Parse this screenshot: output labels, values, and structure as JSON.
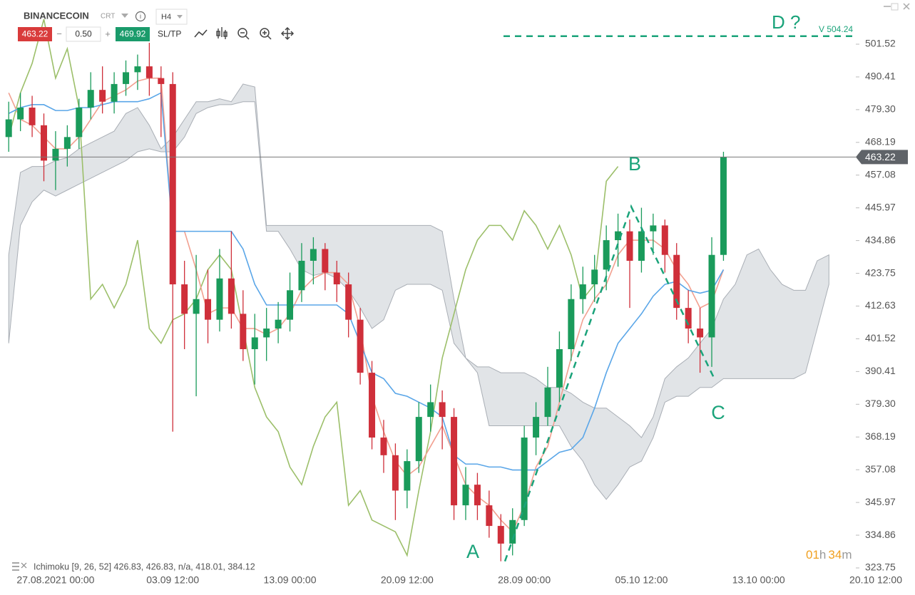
{
  "header": {
    "symbol": "BINANCECOIN",
    "market": "CRT",
    "timeframe": "H4",
    "bid": "463.22",
    "lot": "0.50",
    "ask": "469.92",
    "sltp": "SL/TP"
  },
  "chart_data": {
    "type": "candlestick",
    "categories": [
      null,
      null,
      null,
      null,
      "27.08.2021 00:00",
      null,
      null,
      null,
      null,
      null,
      null,
      null,
      null,
      null,
      "03.09 12:00",
      null,
      null,
      null,
      null,
      null,
      null,
      null,
      null,
      null,
      "13.09 00:00",
      null,
      null,
      null,
      null,
      null,
      null,
      null,
      null,
      null,
      "20.09 12:00",
      null,
      null,
      null,
      null,
      null,
      null,
      null,
      null,
      null,
      "28.09 00:00",
      null,
      null,
      null,
      null,
      null,
      null,
      null,
      null,
      null,
      "05.10 12:00",
      null,
      null,
      null,
      null,
      null,
      null,
      null,
      null,
      null,
      "13.10 00:00",
      null,
      null,
      null,
      null,
      null,
      null,
      null,
      null,
      null,
      "20.10 12:00"
    ],
    "open": [
      470,
      476,
      480,
      474,
      462,
      466,
      470,
      480,
      486,
      482,
      488,
      492,
      494,
      490,
      488,
      420,
      410,
      415,
      408,
      422,
      410,
      398,
      402,
      405,
      408,
      418,
      428,
      432,
      424,
      420,
      408,
      390,
      368,
      362,
      350,
      360,
      375,
      380,
      375,
      345,
      352,
      345,
      338,
      332,
      340,
      368,
      375,
      385,
      398,
      415,
      420,
      425,
      435,
      438,
      428,
      438,
      440,
      430,
      412,
      405,
      402,
      430,
      null,
      null,
      null,
      null,
      null,
      null,
      null,
      null,
      null,
      null,
      null,
      null,
      null
    ],
    "high": [
      482,
      485,
      484,
      478,
      472,
      474,
      483,
      492,
      494,
      492,
      496,
      498,
      502,
      494,
      492,
      428,
      430,
      425,
      432,
      438,
      418,
      410,
      412,
      414,
      424,
      434,
      436,
      434,
      428,
      424,
      412,
      394,
      374,
      366,
      364,
      380,
      386,
      384,
      378,
      358,
      356,
      350,
      342,
      344,
      372,
      380,
      392,
      404,
      420,
      426,
      430,
      440,
      444,
      442,
      446,
      444,
      442,
      434,
      418,
      412,
      436,
      465,
      null,
      null,
      null,
      null,
      null,
      null,
      null,
      null,
      null,
      null,
      null,
      null,
      null
    ],
    "low": [
      465,
      472,
      470,
      455,
      452,
      460,
      466,
      476,
      478,
      478,
      484,
      486,
      484,
      470,
      370,
      398,
      382,
      400,
      404,
      405,
      394,
      386,
      394,
      400,
      404,
      414,
      420,
      418,
      414,
      402,
      386,
      364,
      356,
      340,
      344,
      356,
      370,
      364,
      340,
      340,
      340,
      334,
      326,
      328,
      338,
      362,
      372,
      380,
      394,
      410,
      414,
      418,
      426,
      412,
      424,
      430,
      424,
      408,
      400,
      390,
      392,
      428,
      null,
      null,
      null,
      null,
      null,
      null,
      null,
      null,
      null,
      null,
      null,
      null,
      null
    ],
    "close": [
      476,
      480,
      474,
      462,
      466,
      470,
      480,
      486,
      482,
      488,
      492,
      494,
      490,
      488,
      420,
      410,
      415,
      408,
      422,
      410,
      398,
      402,
      405,
      408,
      418,
      428,
      432,
      424,
      420,
      408,
      390,
      368,
      362,
      350,
      360,
      375,
      380,
      375,
      345,
      352,
      345,
      338,
      332,
      340,
      368,
      375,
      385,
      398,
      415,
      420,
      425,
      435,
      438,
      428,
      438,
      440,
      430,
      412,
      405,
      402,
      430,
      463.22,
      null,
      null,
      null,
      null,
      null,
      null,
      null,
      null,
      null,
      null,
      null,
      null,
      null
    ],
    "up_color": "#1a9b5b",
    "down_color": "#cf2f3a",
    "lines": [
      {
        "color": "#9cbf6a",
        "values": [
          470,
          485,
          495,
          510,
          490,
          500,
          480,
          415,
          420,
          412,
          420,
          435,
          405,
          400,
          408,
          410,
          415,
          425,
          430,
          425,
          405,
          385,
          375,
          370,
          358,
          352,
          365,
          375,
          380,
          345,
          350,
          340,
          338,
          336,
          328,
          350,
          370,
          395,
          410,
          425,
          435,
          440,
          440,
          435,
          445,
          440,
          432,
          440,
          430,
          415,
          420,
          455,
          460,
          null,
          null,
          null,
          null,
          null,
          null,
          null,
          null,
          null,
          null,
          null,
          null,
          null,
          null,
          null,
          null,
          null,
          null,
          null,
          null,
          null,
          null
        ]
      },
      {
        "color": "#f2a090",
        "values": [
          485,
          476,
          474,
          470,
          466,
          466,
          470,
          476,
          482,
          484,
          486,
          489,
          490,
          490,
          438,
          438,
          425,
          410,
          412,
          412,
          405,
          405,
          403,
          405,
          410,
          418,
          422,
          424,
          424,
          420,
          405,
          382,
          370,
          360,
          355,
          358,
          365,
          372,
          362,
          352,
          348,
          345,
          340,
          336,
          345,
          358,
          365,
          380,
          395,
          408,
          415,
          420,
          430,
          435,
          435,
          435,
          432,
          425,
          420,
          412,
          414,
          425,
          null,
          null,
          null,
          null,
          null,
          null,
          null,
          null,
          null,
          null,
          null,
          null,
          null
        ]
      },
      {
        "color": "#5aa6e8",
        "values": [
          478,
          480,
          481,
          481,
          479,
          479,
          480,
          480,
          481,
          482,
          482,
          482,
          483,
          485,
          438,
          438,
          438,
          438,
          438,
          438,
          432,
          420,
          413,
          413,
          413,
          413,
          413,
          413,
          413,
          410,
          400,
          390,
          388,
          383,
          382,
          380,
          378,
          375,
          362,
          359,
          359,
          358,
          358,
          357,
          357,
          357,
          360,
          363,
          364,
          368,
          378,
          390,
          400,
          405,
          410,
          416,
          420,
          421,
          418,
          417,
          418,
          425,
          null,
          null,
          null,
          null,
          null,
          null,
          null,
          null,
          null,
          null,
          null,
          null,
          null
        ]
      }
    ],
    "cloud": {
      "color": "#c9cdd3",
      "upper": [
        430,
        458,
        460,
        460,
        462,
        463,
        466,
        468,
        470,
        472,
        478,
        480,
        474,
        466,
        470,
        476,
        482,
        482,
        483,
        482,
        488,
        487,
        440,
        440,
        440,
        440,
        440,
        440,
        440,
        440,
        440,
        440,
        440,
        440,
        440,
        440,
        440,
        438,
        415,
        395,
        392,
        392,
        390,
        390,
        390,
        388,
        385,
        385,
        383,
        380,
        378,
        378,
        375,
        372,
        368,
        375,
        388,
        392,
        395,
        400,
        405,
        415,
        420,
        430,
        432,
        425,
        420,
        418,
        418,
        428,
        430,
        null,
        null,
        null,
        null
      ],
      "lower": [
        400,
        440,
        448,
        452,
        450,
        452,
        454,
        456,
        458,
        460,
        462,
        465,
        466,
        465,
        465,
        470,
        478,
        480,
        481,
        481,
        482,
        482,
        438,
        438,
        432,
        425,
        423,
        424,
        422,
        418,
        412,
        405,
        408,
        418,
        420,
        420,
        420,
        418,
        400,
        395,
        390,
        372,
        372,
        372,
        372,
        372,
        372,
        372,
        365,
        360,
        352,
        347,
        352,
        358,
        360,
        368,
        380,
        382,
        382,
        385,
        385,
        388,
        388,
        388,
        388,
        388,
        388,
        388,
        390,
        405,
        420,
        null,
        null,
        null,
        null
      ]
    },
    "last": 463.22,
    "ylim": [
      321.57,
      516.52
    ],
    "yticks": [
      501.52,
      490.41,
      {
        "value": 479.3,
        "label": "479.30"
      },
      468.19,
      457.08,
      445.97,
      434.86,
      423.75,
      412.63,
      401.52,
      390.41,
      {
        "value": 379.3,
        "label": "379.30"
      },
      368.19,
      357.08,
      345.97,
      334.86,
      323.75
    ],
    "pattern": {
      "color": "#1aa37a",
      "points": [
        {
          "label": "A",
          "value": 326
        },
        {
          "label": "B",
          "value": 446.4
        },
        {
          "label": "C",
          "value": 388.3
        }
      ],
      "target": {
        "label": "D ?",
        "value": 504.24,
        "value_label": "V 504.24"
      }
    },
    "indicator_label": "Ichimoku [9, 26, 52] 426.83, 426.83, n/a, 418.01, 384.12",
    "timer": {
      "hours": "01",
      "h": "h",
      "minutes": "34",
      "m": "m"
    }
  }
}
